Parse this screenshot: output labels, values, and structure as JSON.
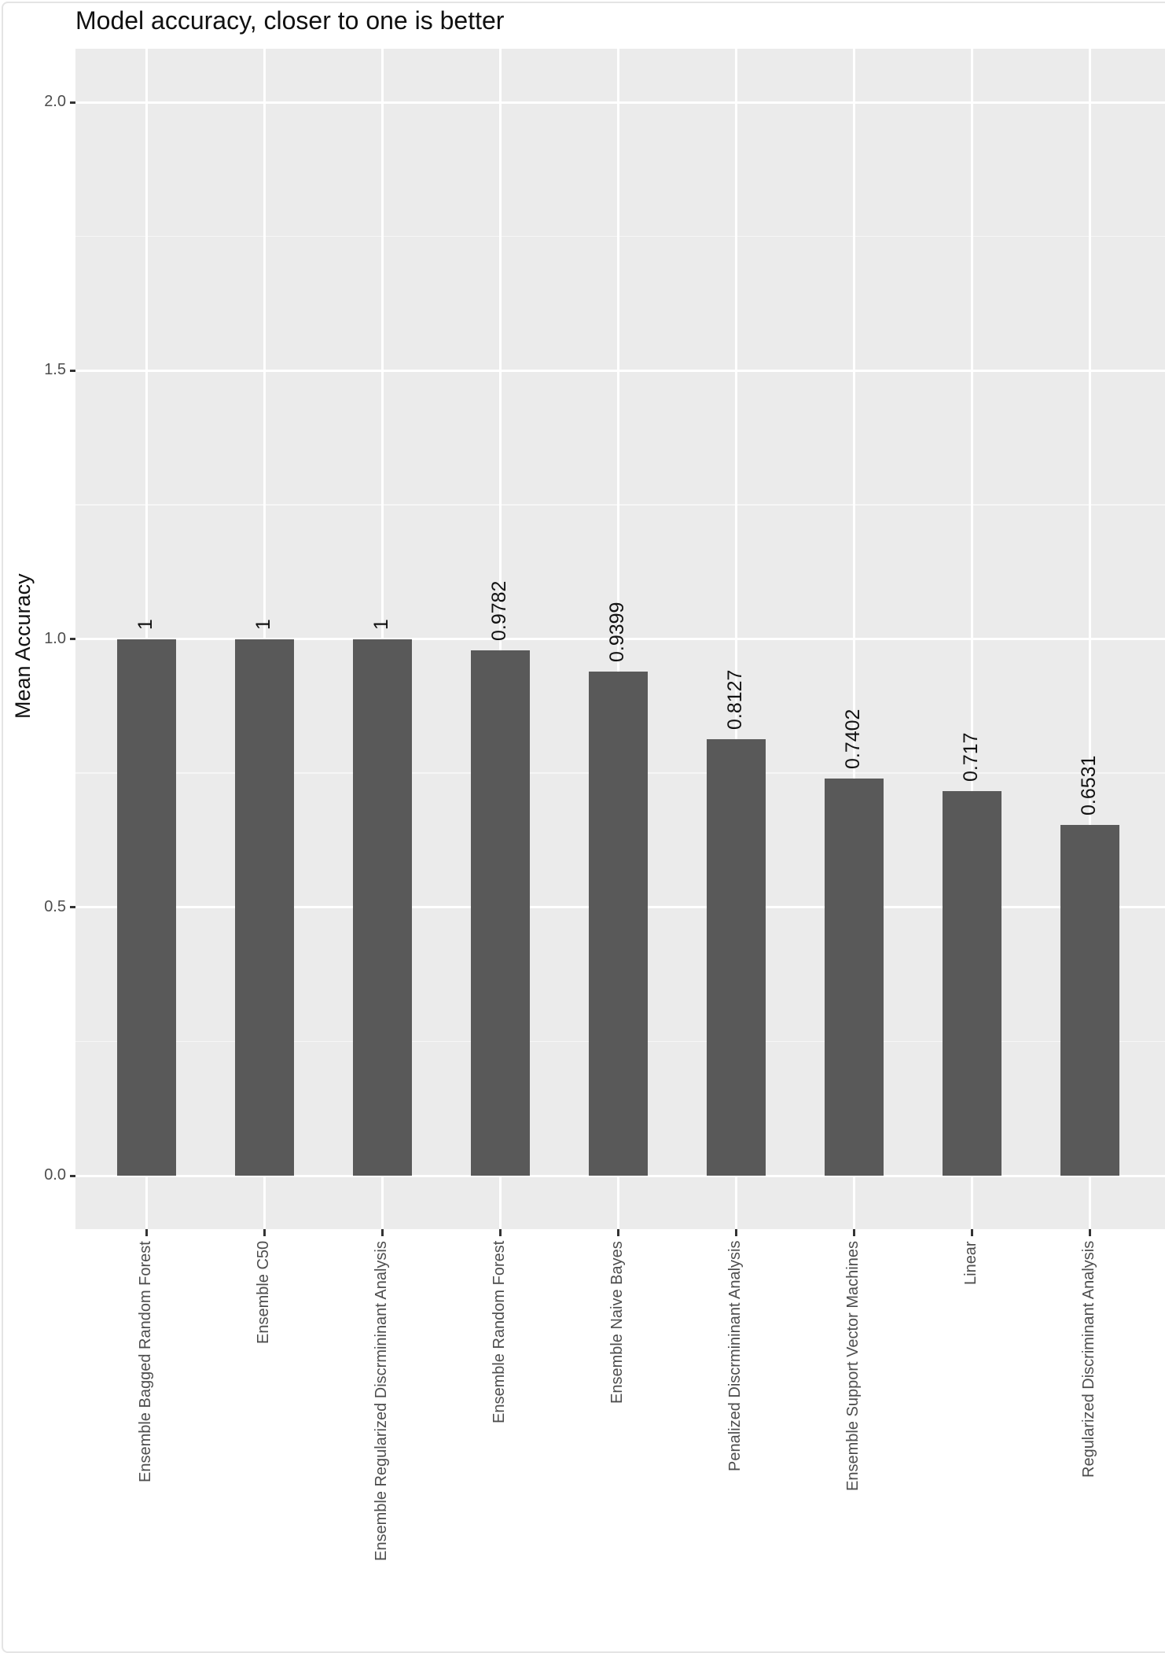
{
  "chart_data": {
    "type": "bar",
    "title": "Model accuracy, closer to one is better",
    "xlabel": "",
    "ylabel": "Mean Accuracy",
    "ylim": [
      -0.1,
      2.1
    ],
    "yticks": [
      "0.0",
      "0.5",
      "1.0",
      "1.5",
      "2.0"
    ],
    "grid": true,
    "legend": "none",
    "categories": [
      "Ensemble Bagged Random Forest",
      "Ensemble C50",
      "Ensemble Regularized Discrmininant Analysis",
      "Ensemble Random Forest",
      "Ensemble Naive Bayes",
      "Penalized Discrmininant Analysis",
      "Ensemble Support Vector Machines",
      "Linear",
      "Regularized Discriminant Analysis"
    ],
    "values": [
      1,
      1,
      1,
      0.9782,
      0.9399,
      0.8127,
      0.7402,
      0.717,
      0.6531
    ],
    "value_labels": [
      "1",
      "1",
      "1",
      "0.9782",
      "0.9399",
      "0.8127",
      "0.7402",
      "0.717",
      "0.6531"
    ],
    "bar_color": "#595959",
    "panel_color": "#ebebeb"
  }
}
